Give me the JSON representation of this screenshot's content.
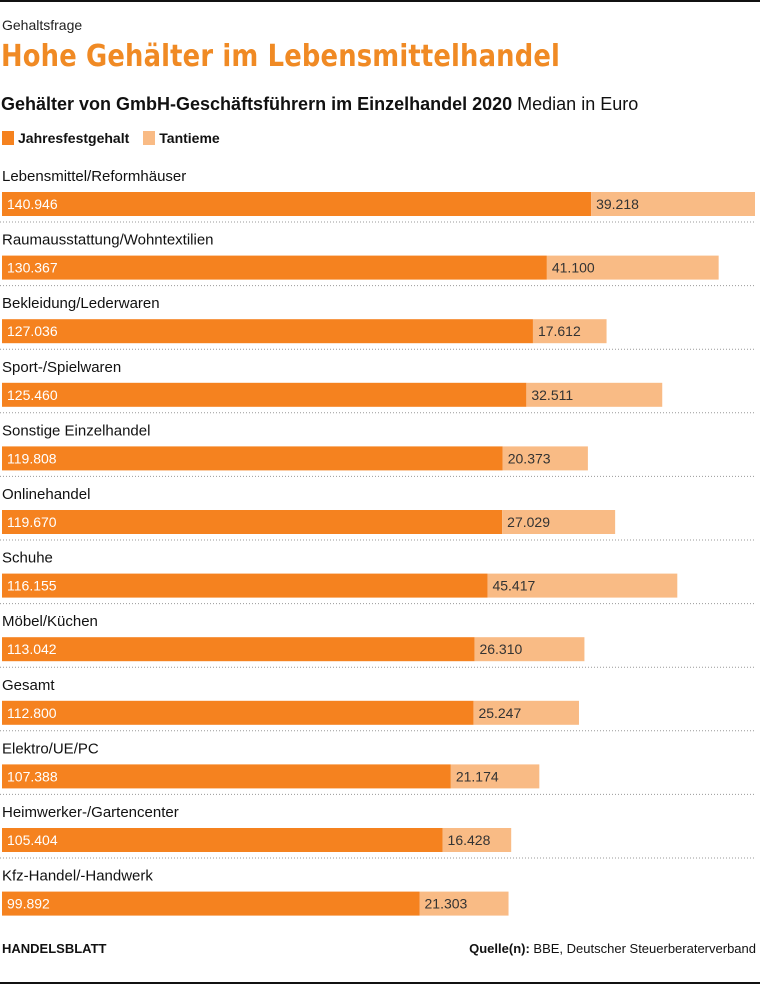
{
  "kicker": "Gehaltsfrage",
  "headline": "Hohe Gehälter im Lebensmittelhandel",
  "subtitle": {
    "bold": "Gehälter von GmbH-Geschäftsführern im Einzelhandel 2020",
    "unit": "Median in Euro"
  },
  "footer": {
    "brand": "HANDELSBLATT",
    "source_label": "Quelle(n):",
    "source": "BBE, Deutscher Steuerberaterverband"
  },
  "colors": {
    "base": "#f5821f",
    "bonus": "#f9bb85",
    "headline": "#f08a24"
  },
  "chart_data": {
    "type": "bar",
    "orientation": "horizontal",
    "stacked": true,
    "categories": [
      "Lebensmittel/Reformhäuser",
      "Raumausstattung/Wohntextilien",
      "Bekleidung/Lederwaren",
      "Sport-/Spielwaren",
      "Sonstige Einzelhandel",
      "Onlinehandel",
      "Schuhe",
      "Möbel/Küchen",
      "Gesamt",
      "Elektro/UE/PC",
      "Heimwerker-/Gartencenter",
      "Kfz-Handel/-Handwerk"
    ],
    "series": [
      {
        "name": "Jahresfestgehalt",
        "values": [
          140946,
          130367,
          127036,
          125460,
          119808,
          119670,
          116155,
          113042,
          112800,
          107388,
          105404,
          99892
        ],
        "labels": [
          "140.946",
          "130.367",
          "127.036",
          "125.460",
          "119.808",
          "119.670",
          "116.155",
          "113.042",
          "112.800",
          "107.388",
          "105.404",
          "99.892"
        ]
      },
      {
        "name": "Tantieme",
        "values": [
          39218,
          41100,
          17612,
          32511,
          20373,
          27029,
          45417,
          26310,
          25247,
          21174,
          16428,
          21303
        ],
        "labels": [
          "39.218",
          "41.100",
          "17.612",
          "32.511",
          "20.373",
          "27.029",
          "45.417",
          "26.310",
          "25.247",
          "21.174",
          "16.428",
          "21.303"
        ]
      }
    ],
    "xlim": [
      0,
      180164
    ],
    "legend": "top-left",
    "grid": false
  }
}
